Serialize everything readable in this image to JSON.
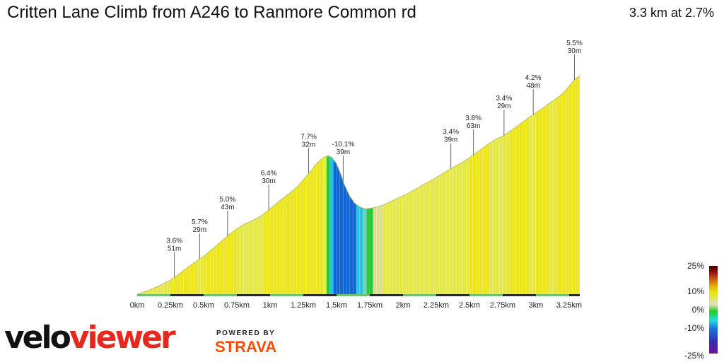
{
  "header": {
    "title": "Critten Lane Climb from A246 to Ranmore Common rd",
    "summary": "3.3 km at 2.7%"
  },
  "branding": {
    "logo_part1": "velo",
    "logo_part2": "viewer",
    "powered_by": "POWERED BY",
    "strava": "STRAVA",
    "logo_color": "#e8281e",
    "strava_color": "#fc4c02"
  },
  "chart_data": {
    "type": "area",
    "title": "Critten Lane Climb from A246 to Ranmore Common rd",
    "xlabel": "",
    "ylabel": "",
    "x_ticks": [
      "0km",
      "0.25km",
      "0.5km",
      "0.75km",
      "1km",
      "1.25km",
      "1.5km",
      "1.75km",
      "2km",
      "2.25km",
      "2.5km",
      "2.75km",
      "3km",
      "3.25km"
    ],
    "x_tick_values": [
      0,
      0.25,
      0.5,
      0.75,
      1.0,
      1.25,
      1.5,
      1.75,
      2.0,
      2.25,
      2.5,
      2.75,
      3.0,
      3.25
    ],
    "xlim": [
      0,
      3.33
    ],
    "profile": [
      [
        0.0,
        0
      ],
      [
        0.05,
        1.2
      ],
      [
        0.1,
        2.8
      ],
      [
        0.15,
        4.5
      ],
      [
        0.2,
        6.5
      ],
      [
        0.25,
        8.5
      ],
      [
        0.3,
        11.3
      ],
      [
        0.35,
        14.5
      ],
      [
        0.4,
        17.5
      ],
      [
        0.45,
        20.5
      ],
      [
        0.5,
        23.2
      ],
      [
        0.55,
        26.5
      ],
      [
        0.6,
        30
      ],
      [
        0.65,
        33.5
      ],
      [
        0.7,
        37
      ],
      [
        0.75,
        40
      ],
      [
        0.8,
        42.5
      ],
      [
        0.85,
        44.5
      ],
      [
        0.9,
        46.5
      ],
      [
        0.95,
        49
      ],
      [
        1.0,
        52.2
      ],
      [
        1.05,
        55.7
      ],
      [
        1.1,
        59
      ],
      [
        1.15,
        62
      ],
      [
        1.2,
        65.5
      ],
      [
        1.25,
        70
      ],
      [
        1.3,
        75
      ],
      [
        1.35,
        80
      ],
      [
        1.4,
        83.8
      ],
      [
        1.44,
        85
      ],
      [
        1.47,
        83.5
      ],
      [
        1.5,
        80
      ],
      [
        1.53,
        74
      ],
      [
        1.56,
        67
      ],
      [
        1.6,
        60
      ],
      [
        1.64,
        55.5
      ],
      [
        1.68,
        53.3
      ],
      [
        1.72,
        52.3
      ],
      [
        1.78,
        53
      ],
      [
        1.85,
        54.5
      ],
      [
        1.9,
        56.5
      ],
      [
        1.95,
        58.5
      ],
      [
        2.0,
        60.3
      ],
      [
        2.05,
        62.3
      ],
      [
        2.1,
        64.7
      ],
      [
        2.15,
        67
      ],
      [
        2.2,
        69.2
      ],
      [
        2.25,
        71.5
      ],
      [
        2.3,
        74
      ],
      [
        2.35,
        76.5
      ],
      [
        2.4,
        78.8
      ],
      [
        2.45,
        81
      ],
      [
        2.5,
        83.6
      ],
      [
        2.55,
        86.5
      ],
      [
        2.6,
        89.5
      ],
      [
        2.65,
        92.5
      ],
      [
        2.7,
        95
      ],
      [
        2.75,
        97
      ],
      [
        2.8,
        99.5
      ],
      [
        2.85,
        102.5
      ],
      [
        2.9,
        105.5
      ],
      [
        2.95,
        108.5
      ],
      [
        3.0,
        111.2
      ],
      [
        3.05,
        114
      ],
      [
        3.1,
        117
      ],
      [
        3.15,
        119.7
      ],
      [
        3.2,
        123
      ],
      [
        3.25,
        127.5
      ],
      [
        3.29,
        131.5
      ],
      [
        3.33,
        134
      ]
    ],
    "annotations": [
      {
        "x": 0.28,
        "grade": "3.6%",
        "length": "51m"
      },
      {
        "x": 0.47,
        "grade": "5.7%",
        "length": "29m"
      },
      {
        "x": 0.68,
        "grade": "5.0%",
        "length": "43m"
      },
      {
        "x": 0.99,
        "grade": "6.4%",
        "length": "30m"
      },
      {
        "x": 1.29,
        "grade": "7.7%",
        "length": "32m"
      },
      {
        "x": 1.55,
        "grade": "-10.1%",
        "length": "39m"
      },
      {
        "x": 2.36,
        "grade": "3.4%",
        "length": "39m"
      },
      {
        "x": 2.53,
        "grade": "3.8%",
        "length": "63m"
      },
      {
        "x": 2.76,
        "grade": "3.4%",
        "length": "29m"
      },
      {
        "x": 2.98,
        "grade": "4.2%",
        "length": "48m"
      },
      {
        "x": 3.29,
        "grade": "5.5%",
        "length": "30m"
      }
    ],
    "grade_scale": {
      "labels": [
        "25%",
        "10%",
        "0%",
        "-10%",
        "-25%"
      ],
      "stops": [
        {
          "offset": 0.0,
          "color": "#3a0000"
        },
        {
          "offset": 0.08,
          "color": "#a01010"
        },
        {
          "offset": 0.22,
          "color": "#e8a010"
        },
        {
          "offset": 0.3,
          "color": "#e8e800"
        },
        {
          "offset": 0.44,
          "color": "#e0e0c0"
        },
        {
          "offset": 0.52,
          "color": "#22cc22"
        },
        {
          "offset": 0.62,
          "color": "#22dddd"
        },
        {
          "offset": 0.72,
          "color": "#1a70e0"
        },
        {
          "offset": 0.86,
          "color": "#3030b0"
        },
        {
          "offset": 1.0,
          "color": "#7010a0"
        }
      ]
    },
    "colors": {
      "gentle": "#d9df8e",
      "moderate": "#e6e84a",
      "steep": "#ece61a",
      "flat": "#8ed47a",
      "descent_mild": "#6fd3c2",
      "descent": "#23c4e4",
      "descent_steep": "#1166d6",
      "valley": "#22c93a"
    }
  }
}
